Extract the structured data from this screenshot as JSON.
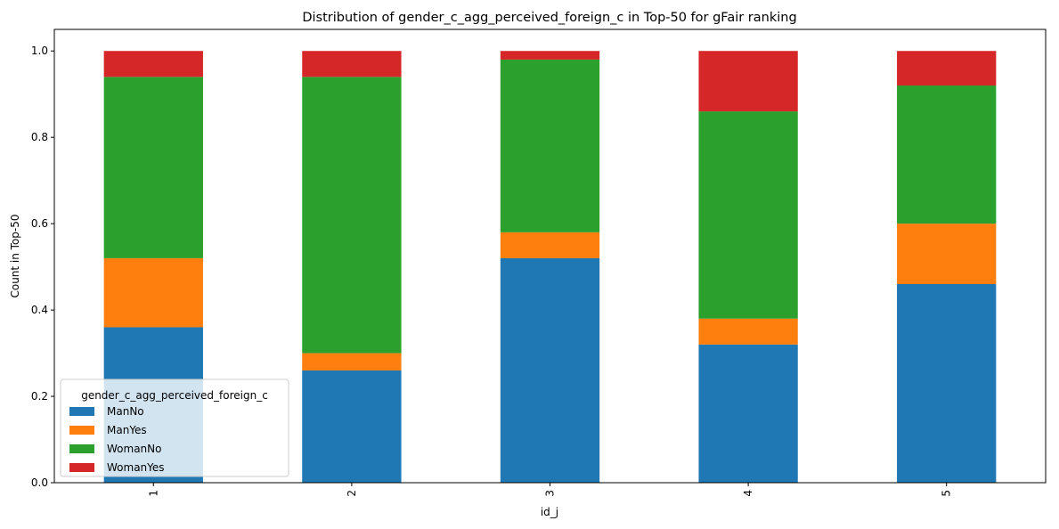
{
  "chart_data": {
    "type": "bar",
    "stacked": true,
    "title": "Distribution of gender_c_agg_perceived_foreign_c in Top-50 for gFair ranking",
    "xlabel": "id_j",
    "ylabel": "Count in Top-50",
    "categories": [
      "1",
      "2",
      "3",
      "4",
      "5"
    ],
    "ylim": [
      0,
      1.05
    ],
    "yticks": [
      "0.0",
      "0.2",
      "0.4",
      "0.6",
      "0.8",
      "1.0"
    ],
    "grid": false,
    "legend": {
      "title": "gender_c_agg_perceived_foreign_c",
      "placement": "lower-left"
    },
    "series": [
      {
        "name": "ManNo",
        "color": "#1f77b4",
        "values": [
          0.36,
          0.26,
          0.52,
          0.32,
          0.46
        ]
      },
      {
        "name": "ManYes",
        "color": "#ff7f0e",
        "values": [
          0.16,
          0.04,
          0.06,
          0.06,
          0.14
        ]
      },
      {
        "name": "WomanNo",
        "color": "#2ca02c",
        "values": [
          0.42,
          0.64,
          0.4,
          0.48,
          0.32
        ]
      },
      {
        "name": "WomanYes",
        "color": "#d62728",
        "values": [
          0.06,
          0.06,
          0.02,
          0.14,
          0.08
        ]
      }
    ]
  }
}
